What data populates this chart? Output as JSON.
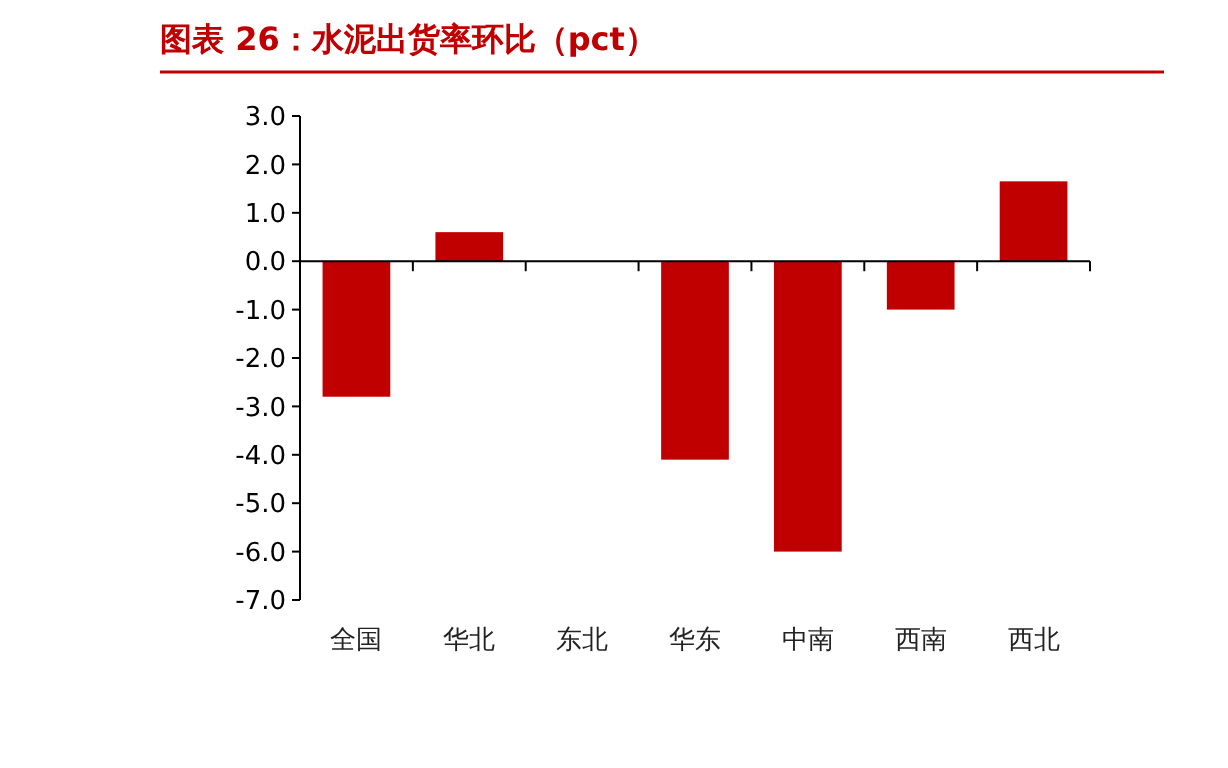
{
  "chart_data": {
    "type": "bar",
    "title": "图表 26：水泥出货率环比（pct）",
    "categories": [
      "全国",
      "华北",
      "东北",
      "华东",
      "中南",
      "西南",
      "西北"
    ],
    "values": [
      -2.8,
      0.6,
      0,
      -4.1,
      -6.0,
      -1.0,
      1.65
    ],
    "color": "#c00000",
    "ylim": [
      -7,
      3
    ],
    "yticks": [
      {
        "value": 3,
        "label": "3.0"
      },
      {
        "value": 2,
        "label": "2.0"
      },
      {
        "value": 1,
        "label": "1.0"
      },
      {
        "value": 0,
        "label": "0.0"
      },
      {
        "value": -1,
        "label": "-1.0"
      },
      {
        "value": -2,
        "label": "-2.0"
      },
      {
        "value": -3,
        "label": "-3.0"
      },
      {
        "value": -4,
        "label": "-4.0"
      },
      {
        "value": -5,
        "label": "-5.0"
      },
      {
        "value": -6,
        "label": "-6.0"
      },
      {
        "value": -7,
        "label": "-7.0"
      }
    ]
  }
}
